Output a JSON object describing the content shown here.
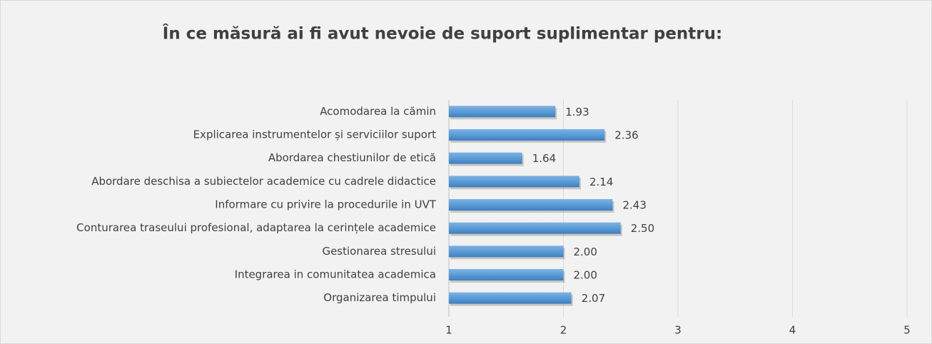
{
  "chart_data": {
    "type": "hbar",
    "title": "În ce măsură ai fi avut nevoie de suport suplimentar pentru:",
    "categories": [
      "Acomodarea la cămin",
      "Explicarea instrumentelor și serviciilor suport",
      "Abordarea chestiunilor de etică",
      "Abordare deschisa a subiectelor academice cu cadrele didactice",
      "Informare cu privire la procedurile in UVT",
      "Conturarea traseului profesional, adaptarea la cerințele academice",
      "Gestionarea stresului",
      "Integrarea in comunitatea academica",
      "Organizarea timpului"
    ],
    "values": [
      1.93,
      2.36,
      1.64,
      2.14,
      2.43,
      2.5,
      2,
      2,
      2.07
    ],
    "value_labels": [
      "1.93",
      "2.36",
      "1.64",
      "2.14",
      "2.43",
      "2.50",
      "2.00",
      "2.00",
      "2.07"
    ],
    "color": "#5b9bd5",
    "xlim": [
      1,
      5
    ],
    "xticks": [
      1,
      2,
      3,
      4,
      5
    ],
    "grid": true
  }
}
